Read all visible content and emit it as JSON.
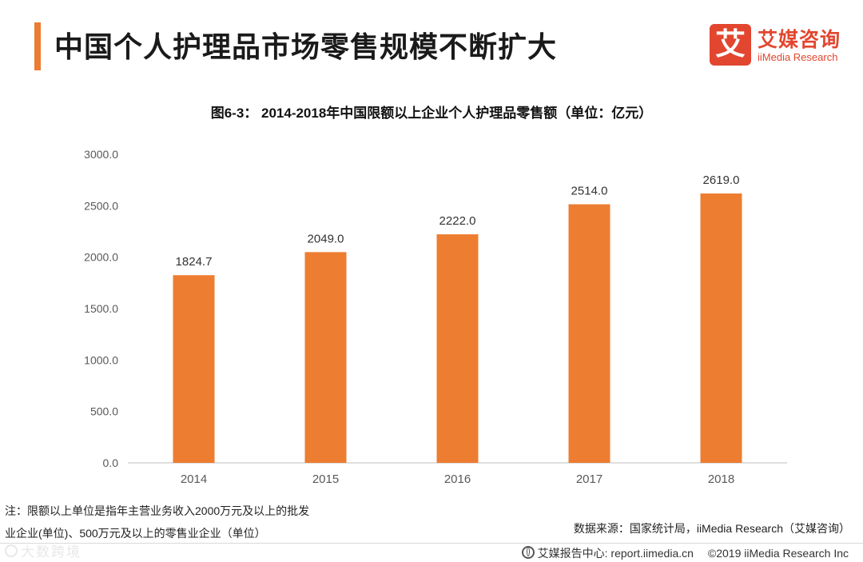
{
  "header": {
    "title": "中国个人护理品市场零售规模不断扩大",
    "accent_color": "#ec7c33"
  },
  "logo": {
    "mark": "艾",
    "name_cn": "艾媒咨询",
    "name_en": "iiMedia Research",
    "color": "#e2462f"
  },
  "chart_data": {
    "type": "bar",
    "title": "图6-3： 2014-2018年中国限额以上企业个人护理品零售额（单位：亿元）",
    "categories": [
      "2014",
      "2015",
      "2016",
      "2017",
      "2018"
    ],
    "values": [
      1824.7,
      2049.0,
      2222.0,
      2514.0,
      2619.0
    ],
    "value_labels": [
      "1824.7",
      "2049.0",
      "2222.0",
      "2514.0",
      "2619.0"
    ],
    "yticks": [
      0,
      500,
      1000,
      1500,
      2000,
      2500,
      3000
    ],
    "ytick_labels": [
      "0.0",
      "500.0",
      "1000.0",
      "1500.0",
      "2000.0",
      "2500.0",
      "3000.0"
    ],
    "ylim": [
      0,
      3000
    ],
    "xlabel": "",
    "ylabel": "",
    "grid": false,
    "bar_color": "#ed7d31"
  },
  "notes": {
    "line1": "注：限额以上单位是指年主营业务收入2000万元及以上的批发",
    "line2": "业企业(单位)、500万元及以上的零售业企业（单位）"
  },
  "source": "数据来源：国家统计局，iiMedia Research（艾媒咨询）",
  "footer": {
    "watermark": "大数跨境",
    "report_center": "艾媒报告中心: report.iimedia.cn",
    "copyright": "©2019  iiMedia Research  Inc"
  }
}
